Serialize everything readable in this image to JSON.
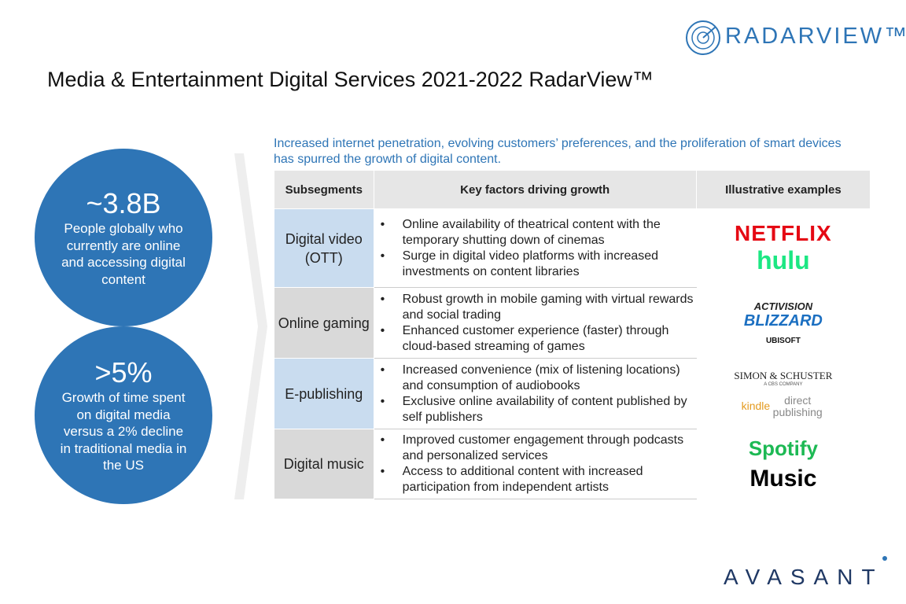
{
  "header": {
    "logo": "RADARVIEW™",
    "title": "Media & Entertainment Digital Services 2021-2022 RadarView™"
  },
  "stats": [
    {
      "value": "~3.8B",
      "text": "People globally who currently are online and accessing digital content"
    },
    {
      "value": ">5%",
      "text": "Growth of time spent on digital media versus a 2% decline in traditional media in the US"
    }
  ],
  "intro": "Increased internet penetration, evolving customers’ preferences, and the proliferation of smart devices has spurred the growth of digital content.",
  "table": {
    "headers": [
      "Subsegments",
      "Key factors driving growth",
      "Illustrative examples"
    ],
    "rows": [
      {
        "subsegment": "Digital video (OTT)",
        "factors": [
          "Online availability of theatrical content with the temporary shutting down of cinemas",
          "Surge in digital video platforms with increased investments on content libraries"
        ],
        "examples": [
          "NETFLIX",
          "hulu"
        ]
      },
      {
        "subsegment": "Online gaming",
        "factors": [
          "Robust growth in mobile gaming with virtual rewards and social trading",
          "Enhanced customer experience (faster) through cloud-based streaming of games"
        ],
        "examples": [
          "ACTIVISION",
          "BLIZZARD",
          "UBISOFT"
        ]
      },
      {
        "subsegment": "E-publishing",
        "factors": [
          "Increased convenience (mix of listening locations) and consumption of audiobooks",
          "Exclusive online availability of content published by self publishers"
        ],
        "examples": [
          "SIMON & SCHUSTER",
          "A CBS COMPANY",
          "kindle",
          "direct publishing"
        ]
      },
      {
        "subsegment": "Digital music",
        "factors": [
          "Improved customer engagement through podcasts and personalized services",
          "Access to additional content with increased participation from independent artists"
        ],
        "examples": [
          "Spotify",
          "Music"
        ]
      }
    ]
  },
  "footer": {
    "logo": "AVASANT"
  }
}
